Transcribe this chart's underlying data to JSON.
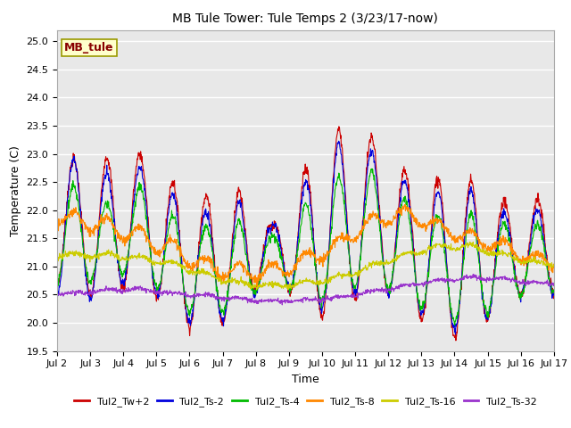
{
  "title": "MB Tule Tower: Tule Temps 2 (3/23/17-now)",
  "xlabel": "Time",
  "ylabel": "Temperature (C)",
  "ylim": [
    19.5,
    25.2
  ],
  "xlim": [
    0,
    15
  ],
  "background_color": "#e8e8e8",
  "grid_color": "#ffffff",
  "legend_label": "MB_tule",
  "legend_box_color": "#ffffcc",
  "legend_box_edge": "#999900",
  "series_colors": [
    "#cc0000",
    "#0000dd",
    "#00bb00",
    "#ff8800",
    "#cccc00",
    "#9933cc"
  ],
  "series_labels": [
    "Tul2_Tw+2",
    "Tul2_Ts-2",
    "Tul2_Ts-4",
    "Tul2_Ts-8",
    "Tul2_Ts-16",
    "Tul2_Ts-32"
  ],
  "xtick_labels": [
    "Jul 2",
    "Jul 3",
    "Jul 4",
    "Jul 5",
    "Jul 6",
    "Jul 7",
    "Jul 8",
    "Jul 9",
    "Jul 10",
    "Jul 11",
    "Jul 12",
    "Jul 13",
    "Jul 14",
    "Jul 15",
    "Jul 16",
    "Jul 17"
  ],
  "xtick_positions": [
    0,
    1,
    2,
    3,
    4,
    5,
    6,
    7,
    8,
    9,
    10,
    11,
    12,
    13,
    14,
    15
  ],
  "yticks": [
    19.5,
    20.0,
    20.5,
    21.0,
    21.5,
    22.0,
    22.5,
    23.0,
    23.5,
    24.0,
    24.5,
    25.0
  ]
}
